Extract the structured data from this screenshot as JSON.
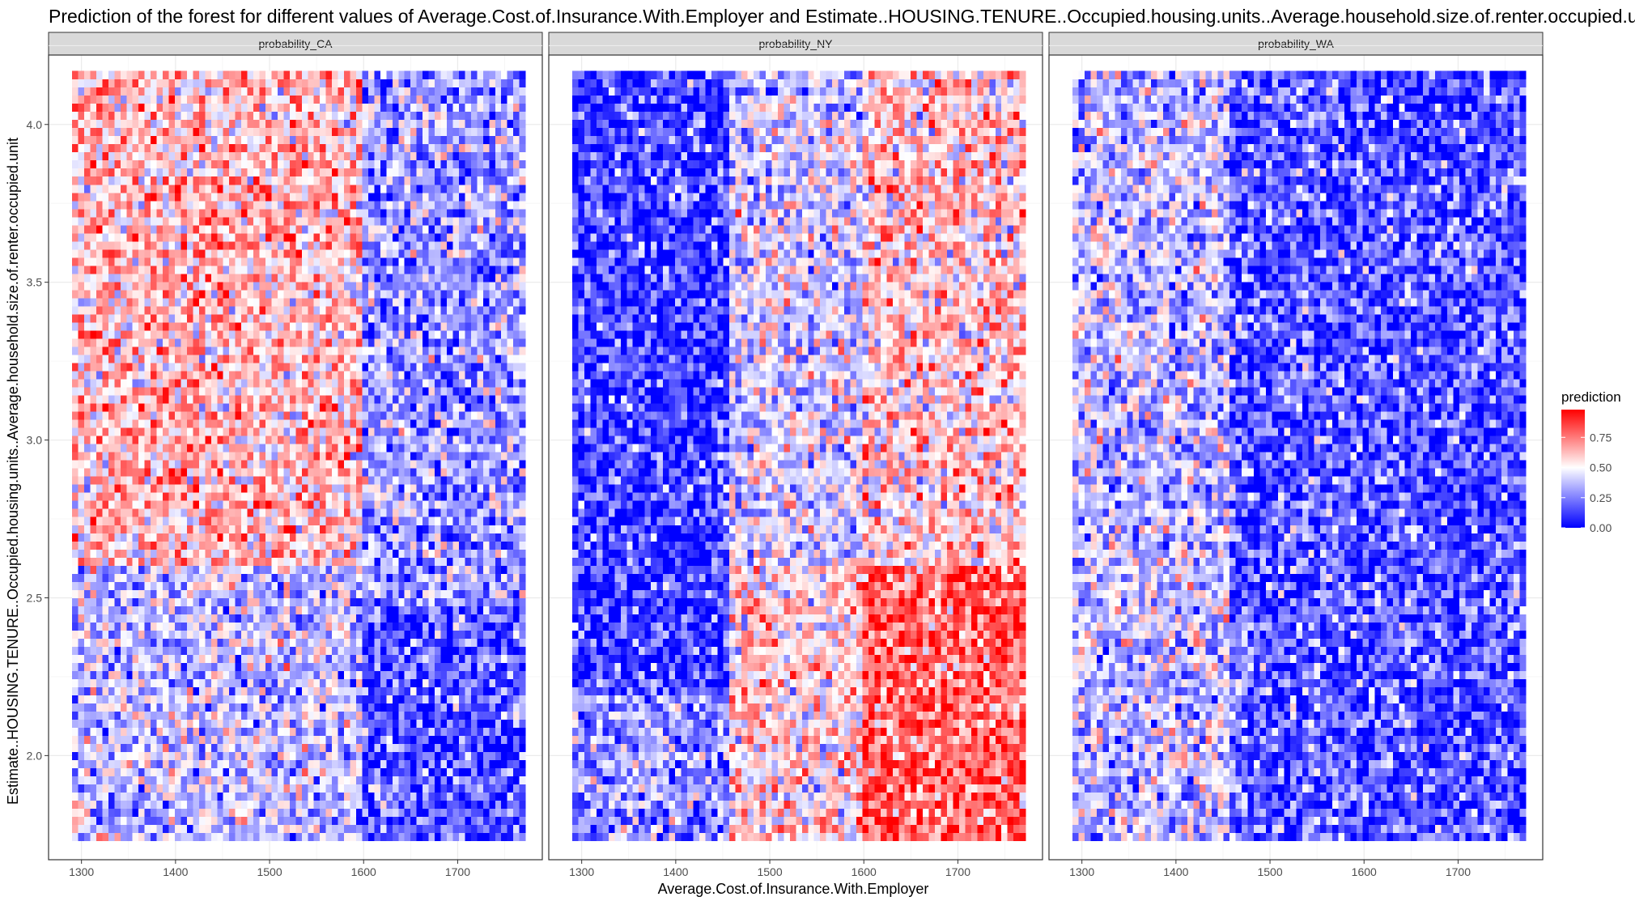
{
  "chart_data": {
    "type": "heatmap",
    "title": "Prediction of the forest for different values of Average.Cost.of.Insurance.With.Employer and Estimate..HOUSING.TENURE..Occupied.housing.units..Average.household.size.of.renter.occupied.unit",
    "xlabel": "Average.Cost.of.Insurance.With.Employer",
    "ylabel": "Estimate..HOUSING.TENURE..Occupied.housing.units..Average.household.size.of.renter.occupied.unit",
    "xlim": [
      1265,
      1790
    ],
    "ylim": [
      1.67,
      4.22
    ],
    "x_ticks": [
      1300,
      1400,
      1500,
      1600,
      1700
    ],
    "y_ticks": [
      2.0,
      2.5,
      3.0,
      3.5,
      4.0
    ],
    "x_tick_labels": [
      "1300",
      "1400",
      "1500",
      "1600",
      "1700"
    ],
    "y_tick_labels": [
      "2.0",
      "2.5",
      "3.0",
      "3.5",
      "4.0"
    ],
    "grid_x_range": [
      1290,
      1772
    ],
    "grid_y_range": [
      1.73,
      4.17
    ],
    "legend": {
      "title": "prediction",
      "placement": "right",
      "ticks": [
        0.0,
        0.25,
        0.5,
        0.75
      ],
      "labels": [
        "0.00",
        "0.25",
        "0.50",
        "0.75"
      ],
      "range": [
        0,
        0.98
      ]
    },
    "colors": {
      "low": "#0000ff",
      "mid": "#ffffff",
      "high": "#ff0000",
      "midpoint": 0.5
    },
    "grid": true,
    "panels": [
      {
        "name": "probability_CA",
        "zones": [
          {
            "x_range": [
              1290,
              1600
            ],
            "y_range": [
              2.6,
              4.17
            ],
            "mean": 0.62
          },
          {
            "x_range": [
              1290,
              1600
            ],
            "y_range": [
              1.73,
              2.6
            ],
            "mean": 0.38
          },
          {
            "x_range": [
              1600,
              1772
            ],
            "y_range": [
              2.5,
              4.17
            ],
            "mean": 0.3
          },
          {
            "x_range": [
              1600,
              1772
            ],
            "y_range": [
              1.73,
              2.5
            ],
            "mean": 0.17
          }
        ]
      },
      {
        "name": "probability_NY",
        "zones": [
          {
            "x_range": [
              1290,
              1460
            ],
            "y_range": [
              2.2,
              4.17
            ],
            "mean": 0.12
          },
          {
            "x_range": [
              1290,
              1460
            ],
            "y_range": [
              1.73,
              2.2
            ],
            "mean": 0.28
          },
          {
            "x_range": [
              1460,
              1600
            ],
            "y_range": [
              2.6,
              4.17
            ],
            "mean": 0.42
          },
          {
            "x_range": [
              1460,
              1600
            ],
            "y_range": [
              1.73,
              2.6
            ],
            "mean": 0.55
          },
          {
            "x_range": [
              1600,
              1772
            ],
            "y_range": [
              2.6,
              4.17
            ],
            "mean": 0.58
          },
          {
            "x_range": [
              1600,
              1772
            ],
            "y_range": [
              1.73,
              2.6
            ],
            "mean": 0.8
          }
        ]
      },
      {
        "name": "probability_WA",
        "zones": [
          {
            "x_range": [
              1290,
              1460
            ],
            "y_range": [
              1.73,
              4.17
            ],
            "mean": 0.38
          },
          {
            "x_range": [
              1460,
              1772
            ],
            "y_range": [
              1.73,
              4.17
            ],
            "mean": 0.17
          }
        ]
      }
    ]
  }
}
